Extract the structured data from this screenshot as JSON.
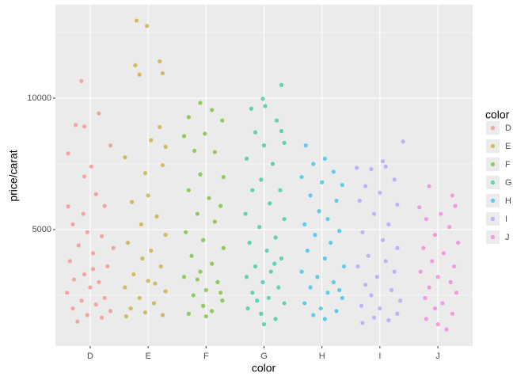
{
  "chart_data": {
    "type": "scatter",
    "x_label": "color",
    "y_label": "price/carat",
    "legend_title": "color",
    "xlim": [
      0.4,
      7.6
    ],
    "ylim": [
      572,
      13554
    ],
    "xticks": [
      {
        "value": 1,
        "label": "D"
      },
      {
        "value": 2,
        "label": "E"
      },
      {
        "value": 3,
        "label": "F"
      },
      {
        "value": 4,
        "label": "G"
      },
      {
        "value": 5,
        "label": "H"
      },
      {
        "value": 6,
        "label": "I"
      },
      {
        "value": 7,
        "label": "J"
      }
    ],
    "yticks": [
      5000,
      10000
    ],
    "minor_yticks": [
      2500,
      7500,
      12500
    ],
    "grid": true,
    "legend": "right",
    "series": [
      {
        "name": "D",
        "color": "#F8766D",
        "x": [
          0.85,
          0.75,
          1.15,
          0.9,
          0.62,
          1.35,
          0.9,
          1.02,
          0.62,
          1.1,
          1.25,
          0.7,
          0.95,
          1.2,
          0.8,
          1.05,
          0.65,
          1.3,
          0.9,
          0.72,
          1.15,
          1.0,
          0.6,
          1.25,
          0.85,
          1.1,
          0.7,
          1.35,
          0.95,
          0.78,
          1.2,
          1.05,
          0.88,
          1.4
        ],
        "values": [
          10650,
          8980,
          9420,
          8920,
          7900,
          8200,
          7020,
          7400,
          5880,
          6350,
          5900,
          5200,
          4900,
          4750,
          4400,
          4100,
          3800,
          3600,
          3300,
          3100,
          3000,
          2800,
          2600,
          2400,
          2300,
          2150,
          2000,
          1900,
          1750,
          1500,
          1650,
          3500,
          5600,
          4300
        ]
      },
      {
        "name": "E",
        "color": "#C49A00",
        "x": [
          1.8,
          1.98,
          1.78,
          2.2,
          1.85,
          2.25,
          2.2,
          2.05,
          2.3,
          1.6,
          1.95,
          2.25,
          2.0,
          1.72,
          2.15,
          1.88,
          2.3,
          1.65,
          2.05,
          1.9,
          2.22,
          1.75,
          2.0,
          1.6,
          2.3,
          1.85,
          2.1,
          1.7,
          1.95,
          2.25,
          1.62,
          2.12
        ],
        "values": [
          12950,
          12750,
          11250,
          11400,
          10900,
          10950,
          8900,
          8400,
          8150,
          7750,
          7150,
          7450,
          6300,
          6050,
          5500,
          5200,
          4800,
          4500,
          4200,
          3900,
          3600,
          3300,
          3050,
          2800,
          2650,
          2400,
          2200,
          2000,
          1850,
          1750,
          1700,
          2950
        ]
      },
      {
        "name": "F",
        "color": "#53B400",
        "x": [
          2.9,
          3.1,
          2.7,
          3.28,
          2.98,
          2.62,
          2.8,
          3.15,
          3.3,
          2.9,
          2.7,
          3.05,
          3.25,
          2.85,
          3.15,
          2.65,
          2.95,
          3.3,
          2.75,
          3.1,
          2.9,
          2.62,
          3.2,
          3.0,
          2.78,
          3.28,
          2.95,
          3.1,
          2.7,
          3.0,
          3.25,
          2.85
        ],
        "values": [
          9820,
          9550,
          9280,
          9150,
          8650,
          8560,
          8000,
          7950,
          7000,
          7100,
          6500,
          6200,
          5900,
          5600,
          5300,
          4900,
          4600,
          4300,
          4000,
          3700,
          3400,
          3200,
          3000,
          2700,
          2500,
          2300,
          2100,
          1900,
          1800,
          1700,
          2600,
          3100
        ]
      },
      {
        "name": "G",
        "color": "#00C094",
        "x": [
          3.98,
          4.3,
          4.02,
          3.78,
          4.22,
          4.3,
          3.85,
          4.0,
          4.35,
          3.7,
          4.15,
          3.95,
          4.28,
          3.8,
          4.1,
          3.68,
          4.35,
          3.92,
          4.2,
          3.75,
          4.05,
          4.3,
          3.85,
          4.12,
          3.7,
          3.98,
          4.25,
          3.8,
          4.08,
          4.35,
          3.72,
          3.95,
          4.2,
          4.0,
          3.88,
          4.18
        ],
        "values": [
          9980,
          10500,
          9700,
          9600,
          9150,
          8750,
          8700,
          8200,
          8300,
          7700,
          7500,
          6900,
          6500,
          6500,
          6000,
          5600,
          5400,
          5100,
          4700,
          4500,
          4200,
          3900,
          3600,
          3400,
          3200,
          3000,
          2800,
          2600,
          2400,
          2200,
          2000,
          1800,
          1600,
          1400,
          2300,
          3700
        ]
      },
      {
        "name": "H",
        "color": "#00B6EB",
        "x": [
          4.72,
          5.05,
          4.85,
          5.2,
          5.35,
          4.65,
          5.0,
          4.8,
          5.25,
          4.95,
          5.1,
          4.7,
          5.3,
          4.88,
          5.15,
          4.75,
          5.05,
          5.38,
          4.65,
          4.92,
          5.2,
          4.8,
          5.1,
          5.35,
          4.7,
          4.98,
          5.25,
          4.85,
          5.05,
          5.3
        ],
        "values": [
          8200,
          7700,
          7500,
          7200,
          6700,
          7000,
          6800,
          6300,
          6100,
          5700,
          5400,
          5200,
          4950,
          4800,
          4500,
          4200,
          3900,
          3600,
          3400,
          3200,
          3000,
          2800,
          2600,
          2400,
          2200,
          2000,
          1900,
          1750,
          1600,
          2700
        ]
      },
      {
        "name": "I",
        "color": "#A58AFF",
        "x": [
          6.4,
          6.05,
          5.6,
          5.85,
          6.1,
          6.25,
          5.75,
          6.0,
          5.65,
          6.3,
          5.9,
          6.15,
          5.7,
          6.05,
          6.3,
          5.8,
          6.1,
          5.62,
          6.25,
          5.95,
          5.75,
          6.2,
          5.85,
          6.35,
          5.68,
          6.0,
          6.3,
          5.9,
          6.15,
          5.7
        ],
        "values": [
          8350,
          7600,
          7350,
          7300,
          7400,
          6900,
          6650,
          6400,
          6100,
          5950,
          5600,
          5200,
          4900,
          4600,
          4300,
          4000,
          3800,
          3600,
          3400,
          3200,
          2900,
          2700,
          2500,
          2300,
          2100,
          2000,
          1800,
          1650,
          1550,
          1450
        ]
      },
      {
        "name": "J",
        "color": "#FB61D7",
        "x": [
          6.85,
          7.25,
          7.3,
          6.68,
          7.05,
          6.8,
          7.2,
          6.95,
          7.35,
          6.75,
          7.1,
          6.9,
          7.28,
          6.7,
          7.0,
          7.22,
          6.85,
          7.32,
          6.78,
          7.08,
          6.95,
          7.25,
          6.8,
          7.0,
          7.15
        ],
        "values": [
          6650,
          6300,
          5900,
          5850,
          5600,
          5400,
          5100,
          4800,
          4500,
          4300,
          4100,
          3800,
          3600,
          3400,
          3200,
          3000,
          2800,
          2600,
          2400,
          2200,
          2000,
          1800,
          1600,
          1400,
          1200
        ]
      }
    ]
  }
}
